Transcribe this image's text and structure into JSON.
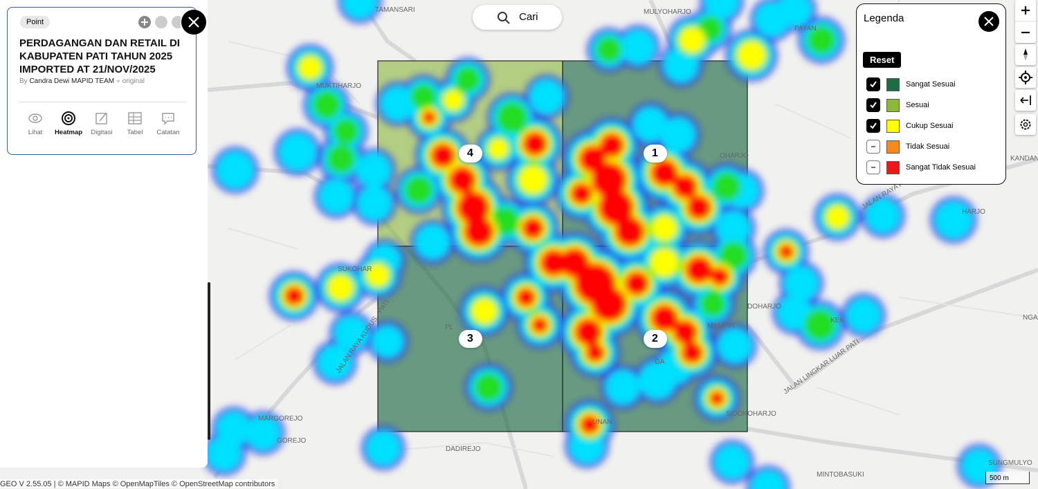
{
  "panel": {
    "type": "Point",
    "title": "PERDAGANGAN DAN RETAIL DI KABUPATEN PATI TAHUN 2025 IMPORTED AT 21/NOV/2025",
    "by": "By",
    "author": "Candra Dewi MAPID TEAM",
    "source": "original",
    "tabs": [
      "Lihat",
      "Heatmap",
      "Digitasi",
      "Tabel",
      "Catatan"
    ],
    "active_tab": 1
  },
  "search": {
    "placeholder": "Cari"
  },
  "legend": {
    "title": "Legenda",
    "reset": "Reset",
    "items": [
      {
        "label": "Sangat Sesuai",
        "color": "#1e6b45",
        "checked": true
      },
      {
        "label": "Sesuai",
        "color": "#8bb83a",
        "checked": true
      },
      {
        "label": "Cukup Sesuai",
        "color": "#ffff00",
        "checked": true
      },
      {
        "label": "Tidak Sesuai",
        "color": "#f58a1f",
        "checked": false
      },
      {
        "label": "Sangat Tidak Sesuai",
        "color": "#e81b1b",
        "checked": false
      }
    ]
  },
  "grid": {
    "cells": [
      {
        "label": "1",
        "color": "#1e6b45"
      },
      {
        "label": "2",
        "color": "#1e6b45"
      },
      {
        "label": "3",
        "color": "#1e6b45"
      },
      {
        "label": "4",
        "color": "#8bb83a"
      }
    ]
  },
  "map_labels": [
    "TAMANSARI",
    "MULYOHARJO",
    "PAYAN",
    "MUKTIHARJO",
    "OHARJO",
    "KANDANG",
    "JALAN RAYA PATI",
    "HARJO",
    "DOHARJO",
    "NGA",
    "KEK",
    "MAMPIR",
    "JALAN LINGKAR LUAR PATI",
    "JALAN RAYA KUDUS - PATI",
    "MARGOREJO",
    "GOREJO",
    "DADIREJO",
    "UNAN",
    "SIDOKOHARJO",
    "MINTOBASUKI",
    "SUNGMULYO",
    "SUKOHAR",
    "GA",
    "PL"
  ],
  "footer": {
    "attribution": "GEO V 2.55.05 | © MAPID Maps © OpenMapTiles © OpenStreetMap contributors",
    "scale": "500 m"
  }
}
